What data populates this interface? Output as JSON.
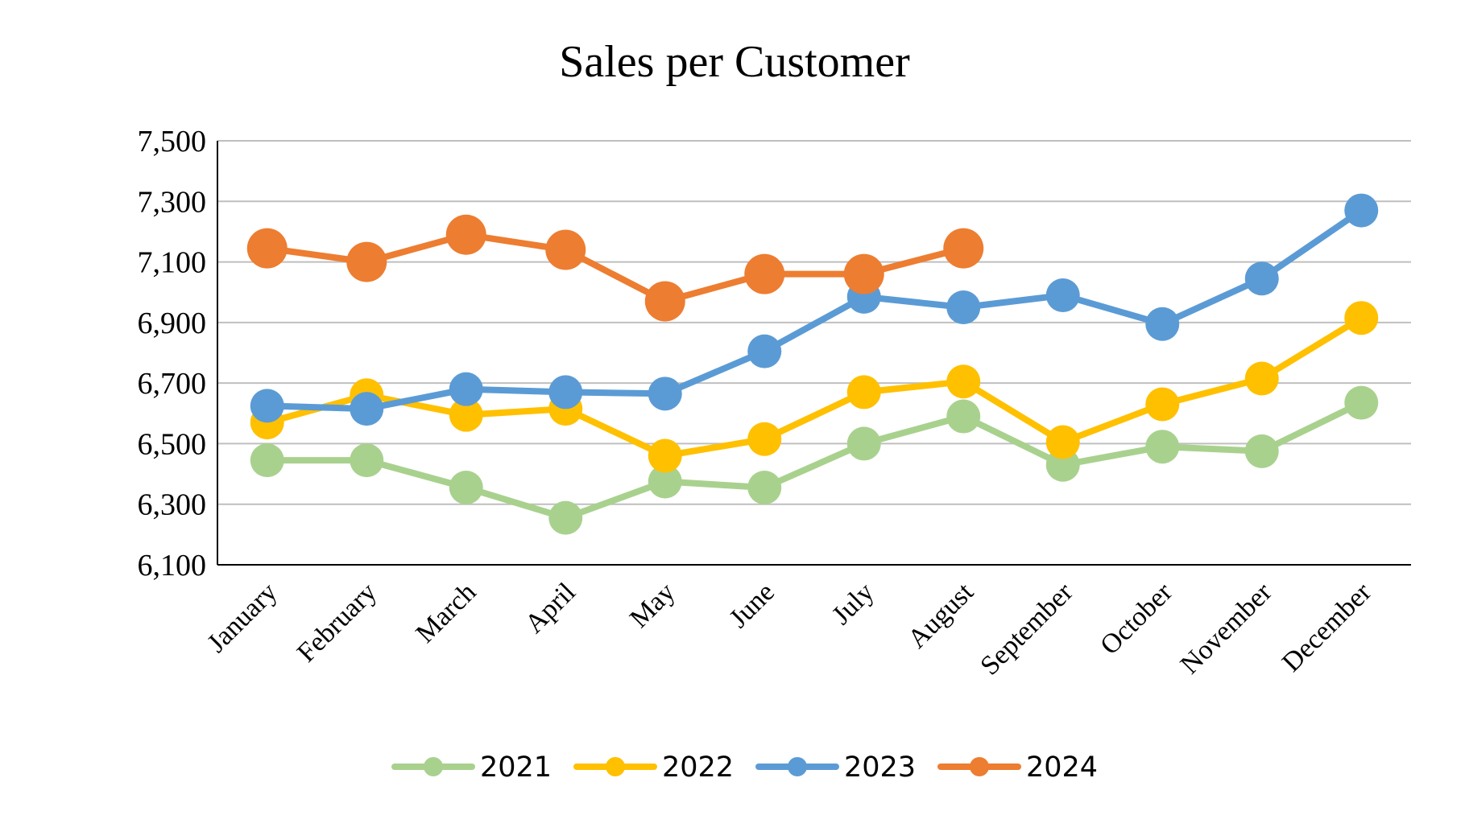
{
  "chart_data": {
    "type": "line",
    "title": "Sales per Customer",
    "xlabel": "",
    "ylabel": "",
    "categories": [
      "January",
      "February",
      "March",
      "April",
      "May",
      "June",
      "July",
      "August",
      "September",
      "October",
      "November",
      "December"
    ],
    "ylim": [
      6100,
      7500
    ],
    "yticks": [
      6100,
      6300,
      6500,
      6700,
      6900,
      7100,
      7300,
      7500
    ],
    "ytick_labels": [
      "6,100",
      "6,300",
      "6,500",
      "6,700",
      "6,900",
      "7,100",
      "7,300",
      "7,500"
    ],
    "grid": true,
    "legend_position": "bottom",
    "series": [
      {
        "name": "2021",
        "color": "#A9D18E",
        "values": [
          6445,
          6445,
          6355,
          6255,
          6375,
          6355,
          6500,
          6590,
          6430,
          6490,
          6475,
          6635
        ]
      },
      {
        "name": "2022",
        "color": "#FFC000",
        "values": [
          6570,
          6660,
          6595,
          6615,
          6460,
          6515,
          6670,
          6705,
          6505,
          6630,
          6715,
          6915
        ]
      },
      {
        "name": "2023",
        "color": "#5B9BD5",
        "values": [
          6625,
          6615,
          6680,
          6670,
          6665,
          6805,
          6985,
          6950,
          6990,
          6895,
          7045,
          7270
        ]
      },
      {
        "name": "2024",
        "color": "#ED7D31",
        "values": [
          7145,
          7100,
          7190,
          7140,
          6970,
          7060,
          7060,
          7145,
          null,
          null,
          null,
          null
        ]
      }
    ]
  }
}
